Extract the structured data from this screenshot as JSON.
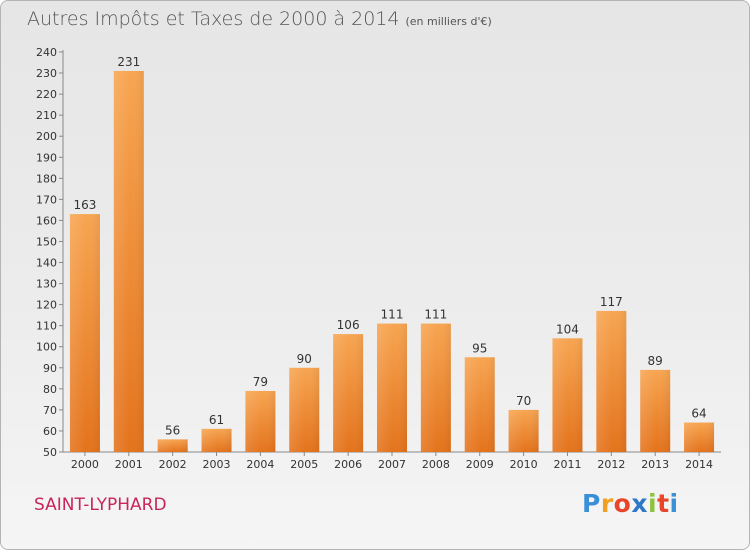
{
  "chart_data": {
    "type": "bar",
    "title": "Autres Impôts et Taxes de 2000 à 2014",
    "subtitle": "(en milliers d'€)",
    "categories": [
      "2000",
      "2001",
      "2002",
      "2003",
      "2004",
      "2005",
      "2006",
      "2007",
      "2008",
      "2009",
      "2010",
      "2011",
      "2012",
      "2013",
      "2014"
    ],
    "values": [
      163,
      231,
      56,
      61,
      79,
      90,
      106,
      111,
      111,
      95,
      70,
      104,
      117,
      89,
      64
    ],
    "ylim": [
      50,
      240
    ],
    "yticks": [
      50,
      60,
      70,
      80,
      90,
      100,
      110,
      120,
      130,
      140,
      150,
      160,
      170,
      180,
      190,
      200,
      210,
      220,
      230,
      240
    ],
    "grid": false,
    "bar_color": "#f0923a"
  },
  "location": "SAINT-LYPHARD",
  "logo": {
    "letters": [
      "P",
      "r",
      "o",
      "x",
      "i",
      "t",
      "i"
    ],
    "colors": [
      "#3a8fd6",
      "#f0a020",
      "#e8452a",
      "#2f77c8",
      "#8cc43c",
      "#e8452a",
      "#3a8fd6"
    ]
  }
}
